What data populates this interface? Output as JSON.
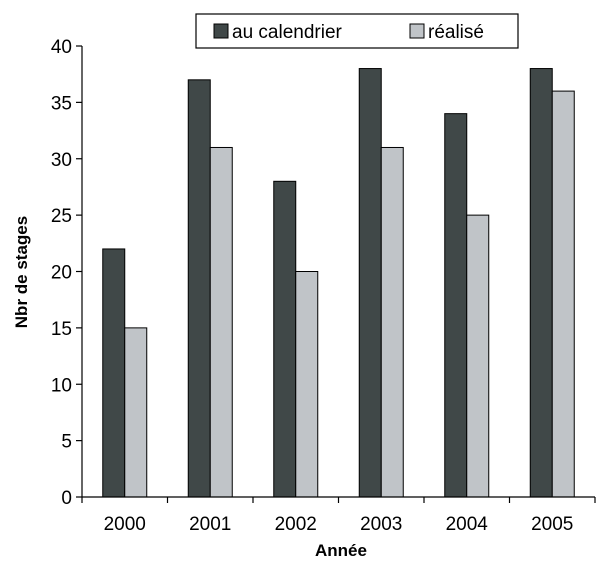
{
  "chart_data": {
    "type": "bar",
    "title": "",
    "xlabel": "Année",
    "ylabel": "Nbr de stages",
    "categories": [
      "2000",
      "2001",
      "2002",
      "2003",
      "2004",
      "2005"
    ],
    "series": [
      {
        "name": "au calendrier",
        "color": "#404848",
        "values": [
          22,
          37,
          28,
          38,
          34,
          38
        ]
      },
      {
        "name": "réalisé",
        "color": "#c0c4c8",
        "values": [
          15,
          31,
          20,
          31,
          25,
          36
        ]
      }
    ],
    "ylim": [
      0,
      40
    ],
    "yticks": [
      0,
      5,
      10,
      15,
      20,
      25,
      30,
      35,
      40
    ],
    "grid": false,
    "legend_position": "top"
  }
}
